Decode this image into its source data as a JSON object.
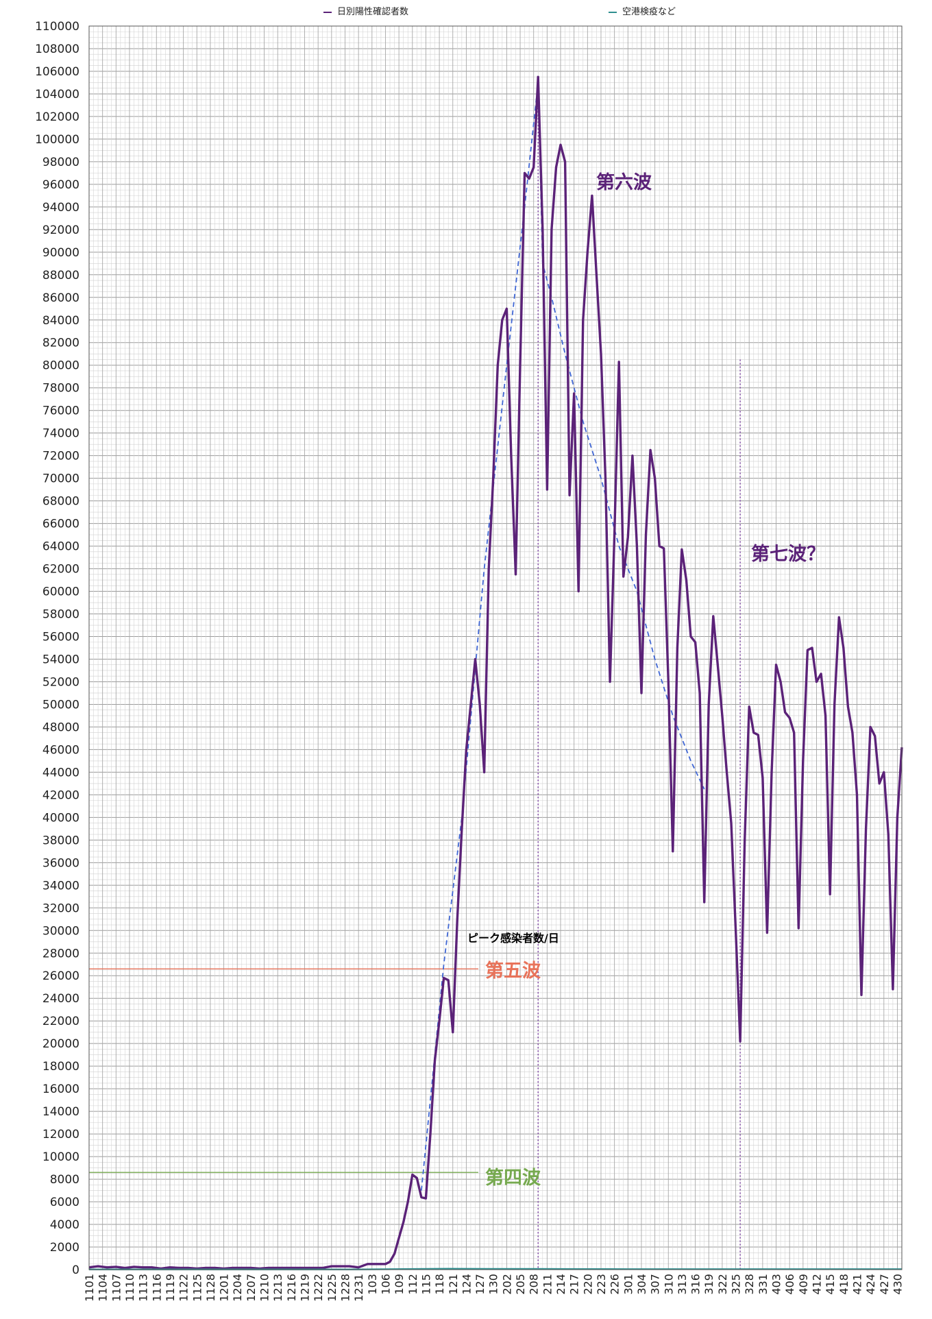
{
  "legend": [
    {
      "label": "日別陽性確認者数",
      "color": "#5b2278"
    },
    {
      "label": "空港検疫など",
      "color": "#2f8f8f"
    }
  ],
  "annotations": {
    "peak_label": "ピーク感染者数/日",
    "wave5": {
      "label": "第五波",
      "color": "#e8735a",
      "value": 26600
    },
    "wave4": {
      "label": "第四波",
      "color": "#76a94f",
      "value": 8600
    },
    "wave6": {
      "label": "第六波",
      "color": "#5b2278"
    },
    "wave7": {
      "label": "第七波？",
      "color": "#5b2278"
    }
  },
  "chart_data": {
    "type": "line",
    "title": "",
    "xlabel": "",
    "ylabel": "",
    "ylim": [
      0,
      110000
    ],
    "ytick_step": 2000,
    "grid": true,
    "legend_position": "top",
    "x_tick_labels": [
      "1101",
      "1104",
      "1107",
      "1110",
      "1113",
      "1116",
      "1119",
      "1122",
      "1125",
      "1128",
      "1201",
      "1204",
      "1207",
      "1210",
      "1213",
      "1216",
      "1219",
      "1222",
      "1225",
      "1228",
      "1231",
      "103",
      "106",
      "109",
      "112",
      "115",
      "118",
      "121",
      "124",
      "127",
      "130",
      "202",
      "205",
      "208",
      "211",
      "214",
      "217",
      "220",
      "223",
      "226",
      "301",
      "304",
      "307",
      "310",
      "313",
      "316",
      "319",
      "322",
      "325",
      "328",
      "331",
      "403",
      "406",
      "409",
      "412",
      "415",
      "418",
      "421",
      "424",
      "427",
      "430"
    ],
    "days": 181,
    "series": [
      {
        "name": "日別陽性確認者数",
        "color": "#5b2278",
        "points": [
          [
            0,
            200
          ],
          [
            2,
            300
          ],
          [
            4,
            200
          ],
          [
            6,
            250
          ],
          [
            8,
            150
          ],
          [
            10,
            250
          ],
          [
            12,
            200
          ],
          [
            14,
            200
          ],
          [
            16,
            100
          ],
          [
            18,
            200
          ],
          [
            20,
            150
          ],
          [
            22,
            150
          ],
          [
            24,
            100
          ],
          [
            26,
            150
          ],
          [
            28,
            150
          ],
          [
            30,
            100
          ],
          [
            32,
            150
          ],
          [
            34,
            150
          ],
          [
            36,
            150
          ],
          [
            38,
            100
          ],
          [
            40,
            150
          ],
          [
            42,
            150
          ],
          [
            44,
            150
          ],
          [
            46,
            150
          ],
          [
            48,
            150
          ],
          [
            50,
            150
          ],
          [
            52,
            150
          ],
          [
            54,
            300
          ],
          [
            56,
            300
          ],
          [
            58,
            300
          ],
          [
            60,
            200
          ],
          [
            62,
            500
          ],
          [
            63,
            500
          ],
          [
            64,
            500
          ],
          [
            65,
            500
          ],
          [
            66,
            500
          ],
          [
            67,
            700
          ],
          [
            68,
            1400
          ],
          [
            69,
            2800
          ],
          [
            70,
            4200
          ],
          [
            71,
            6000
          ],
          [
            72,
            8400
          ],
          [
            73,
            8100
          ],
          [
            74,
            6400
          ],
          [
            75,
            6300
          ],
          [
            76,
            12000
          ],
          [
            77,
            18500
          ],
          [
            78,
            22000
          ],
          [
            79,
            25800
          ],
          [
            80,
            25600
          ],
          [
            81,
            21000
          ],
          [
            82,
            31000
          ],
          [
            83,
            39000
          ],
          [
            84,
            46000
          ],
          [
            85,
            50000
          ],
          [
            86,
            54000
          ],
          [
            87,
            50000
          ],
          [
            88,
            44000
          ],
          [
            89,
            62000
          ],
          [
            90,
            70000
          ],
          [
            91,
            80000
          ],
          [
            92,
            84000
          ],
          [
            93,
            85000
          ],
          [
            94,
            72000
          ],
          [
            95,
            61500
          ],
          [
            96,
            80000
          ],
          [
            97,
            97000
          ],
          [
            98,
            96500
          ],
          [
            99,
            97500
          ],
          [
            100,
            105500
          ],
          [
            101,
            92000
          ],
          [
            102,
            69000
          ],
          [
            103,
            92000
          ],
          [
            104,
            97500
          ],
          [
            105,
            99500
          ],
          [
            106,
            98000
          ],
          [
            107,
            68500
          ],
          [
            108,
            77500
          ],
          [
            109,
            60000
          ],
          [
            110,
            84000
          ],
          [
            111,
            90000
          ],
          [
            112,
            95000
          ],
          [
            113,
            88000
          ],
          [
            114,
            81000
          ],
          [
            115,
            70000
          ],
          [
            116,
            52000
          ],
          [
            117,
            65000
          ],
          [
            118,
            80300
          ],
          [
            119,
            61300
          ],
          [
            120,
            64800
          ],
          [
            121,
            72000
          ],
          [
            122,
            64000
          ],
          [
            123,
            51000
          ],
          [
            124,
            65000
          ],
          [
            125,
            72500
          ],
          [
            126,
            70000
          ],
          [
            127,
            64000
          ],
          [
            128,
            63800
          ],
          [
            129,
            52000
          ],
          [
            130,
            37000
          ],
          [
            131,
            55000
          ],
          [
            132,
            63700
          ],
          [
            133,
            61000
          ],
          [
            134,
            56000
          ],
          [
            135,
            55500
          ],
          [
            136,
            51000
          ],
          [
            137,
            32500
          ],
          [
            138,
            50000
          ],
          [
            139,
            57800
          ],
          [
            140,
            53500
          ],
          [
            141,
            49000
          ],
          [
            142,
            44000
          ],
          [
            143,
            39500
          ],
          [
            144,
            30000
          ],
          [
            145,
            20200
          ],
          [
            146,
            38000
          ],
          [
            147,
            49800
          ],
          [
            148,
            47500
          ],
          [
            149,
            47300
          ],
          [
            150,
            43500
          ],
          [
            151,
            29800
          ],
          [
            152,
            44000
          ],
          [
            153,
            53500
          ],
          [
            154,
            52000
          ],
          [
            155,
            49300
          ],
          [
            156,
            48800
          ],
          [
            157,
            47500
          ],
          [
            158,
            30200
          ],
          [
            159,
            45000
          ],
          [
            160,
            54800
          ],
          [
            161,
            55000
          ],
          [
            162,
            52000
          ],
          [
            163,
            52700
          ],
          [
            164,
            49000
          ],
          [
            165,
            33200
          ],
          [
            166,
            50000
          ],
          [
            167,
            57700
          ],
          [
            168,
            55000
          ],
          [
            169,
            49800
          ],
          [
            170,
            47500
          ],
          [
            171,
            42000
          ],
          [
            172,
            24300
          ],
          [
            173,
            39000
          ],
          [
            174,
            48000
          ],
          [
            175,
            47200
          ],
          [
            176,
            43000
          ],
          [
            177,
            44000
          ],
          [
            178,
            38500
          ],
          [
            179,
            24800
          ],
          [
            180,
            40000
          ],
          [
            181,
            46200
          ]
        ]
      },
      {
        "name": "空港検疫など",
        "color": "#2f8f8f",
        "points": [
          [
            0,
            20
          ],
          [
            20,
            20
          ],
          [
            40,
            20
          ],
          [
            60,
            20
          ],
          [
            70,
            50
          ],
          [
            80,
            80
          ],
          [
            90,
            60
          ],
          [
            100,
            60
          ],
          [
            110,
            50
          ],
          [
            120,
            40
          ],
          [
            130,
            40
          ],
          [
            140,
            40
          ],
          [
            150,
            40
          ],
          [
            160,
            40
          ],
          [
            170,
            40
          ],
          [
            181,
            40
          ]
        ]
      }
    ],
    "trend_lines": [
      {
        "color": "#3f66d4",
        "points": [
          [
            74,
            7000
          ],
          [
            79,
            27000
          ],
          [
            83,
            40000
          ],
          [
            88,
            62000
          ],
          [
            93,
            80000
          ],
          [
            97,
            94000
          ],
          [
            100,
            105000
          ],
          [
            101,
            89000
          ],
          [
            103,
            86000
          ],
          [
            106,
            81000
          ],
          [
            110,
            75000
          ],
          [
            114,
            70000
          ],
          [
            118,
            64000
          ],
          [
            122,
            60000
          ],
          [
            126,
            54000
          ],
          [
            130,
            49000
          ],
          [
            134,
            45000
          ],
          [
            137,
            42500
          ]
        ]
      }
    ],
    "vertical_markers": [
      {
        "x": 100,
        "color": "#7a3fa0"
      },
      {
        "x": 145,
        "color": "#7a3fa0"
      }
    ]
  }
}
